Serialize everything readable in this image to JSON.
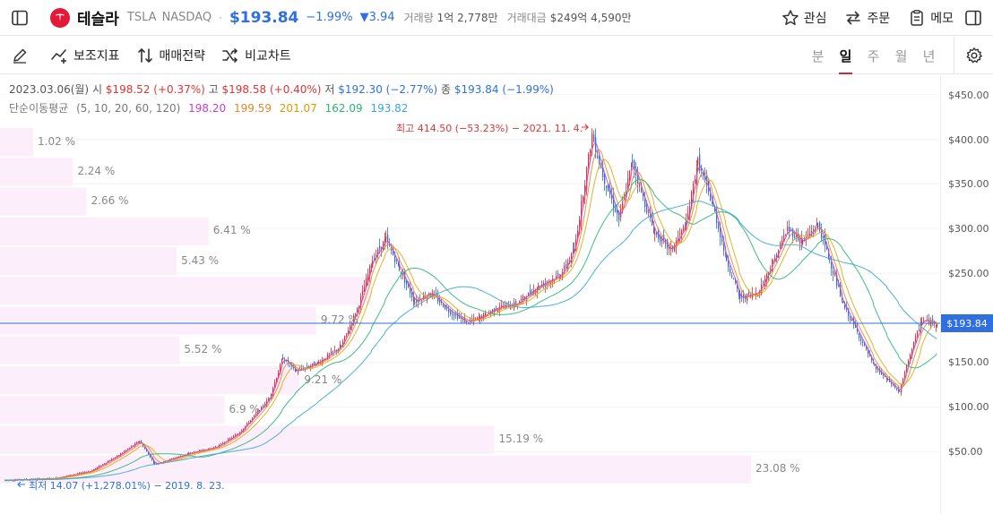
{
  "header": {
    "stock_name": "테슬라",
    "ticker": "TSLA",
    "exchange": "NASDAQ",
    "price_dot": "·",
    "price": "$193.84",
    "change_pct": "−1.99%",
    "change_abs": "▼3.94",
    "volume_label": "거래량",
    "volume_value": "1억 2,778만",
    "amount_label": "거래대금",
    "amount_value": "$249억 4,590만",
    "actions": {
      "watch": "관심",
      "order": "주문",
      "memo": "메모"
    }
  },
  "toolbar": {
    "indicators": "보조지표",
    "strategy": "매매전략",
    "compare": "비교차트",
    "periods": [
      "분",
      "일",
      "주",
      "월",
      "년"
    ],
    "active_period": "일"
  },
  "ohlc": {
    "date": "2023.03.06(월)",
    "open_label": "시",
    "open": "$198.52 (+0.37%)",
    "high_label": "고",
    "high": "$198.58 (+0.40%)",
    "low_label": "저",
    "low": "$192.30 (−2.77%)",
    "close_label": "종",
    "close": "$193.84 (−1.99%)"
  },
  "moving_average": {
    "label": "단순이동평균",
    "periods": "(5, 10, 20, 60, 120)",
    "values": [
      "198.20",
      "199.59",
      "201.07",
      "162.09",
      "193.82"
    ],
    "colors": [
      "#c940c8",
      "#e8862c",
      "#e6a817",
      "#2bb673",
      "#3aa6d6"
    ]
  },
  "annotations": {
    "max": "최고 414.50 (−53.23%) − 2021. 11. 4.",
    "min": "최저 14.07 (+1,278.01%) − 2019. 8. 23."
  },
  "volume_profile": [
    {
      "label": "1.02 %",
      "pct": 1.02
    },
    {
      "label": "2.24 %",
      "pct": 2.24
    },
    {
      "label": "2.66 %",
      "pct": 2.66
    },
    {
      "label": "6.41 %",
      "pct": 6.41
    },
    {
      "label": "5.43 %",
      "pct": 5.43
    },
    {
      "label": "",
      "pct": 11.4
    },
    {
      "label": "9.72 %",
      "pct": 9.72
    },
    {
      "label": "5.52 %",
      "pct": 5.52
    },
    {
      "label": "9.21 %",
      "pct": 9.21
    },
    {
      "label": "6.9 %",
      "pct": 6.9
    },
    {
      "label": "15.19 %",
      "pct": 15.19
    },
    {
      "label": "23.08 %",
      "pct": 23.08
    }
  ],
  "y_axis": {
    "ticks": [
      "$450.00",
      "$400.00",
      "$350.00",
      "$300.00",
      "$250.00",
      "$200.00",
      "$150.00",
      "$100.00",
      "$50.00"
    ],
    "current_price_tag": "$193.84"
  },
  "colors": {
    "up": "#e03434",
    "down": "#2f6fe0",
    "brand": "#e31937",
    "accent": "#2f6fe0"
  }
}
